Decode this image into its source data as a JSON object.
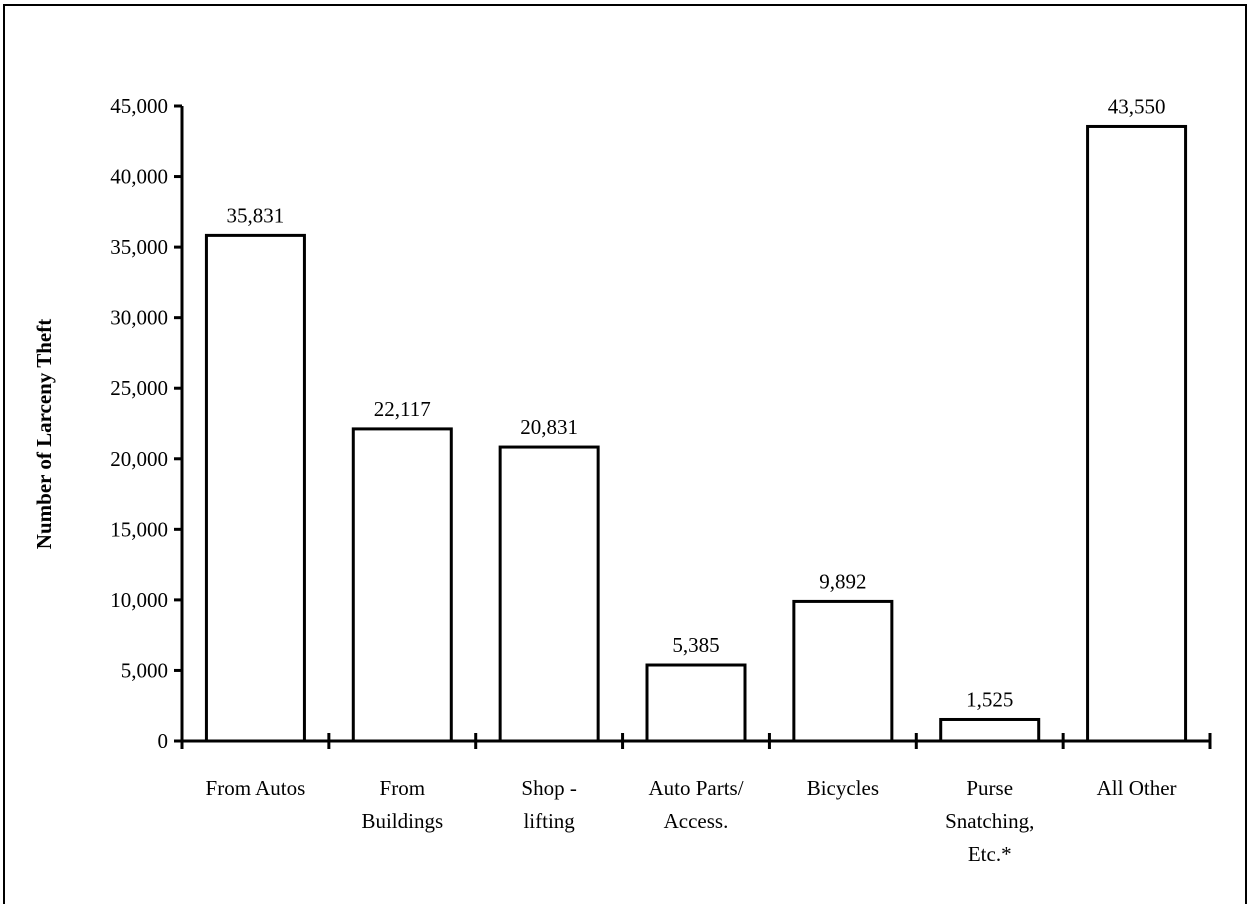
{
  "chart_data": {
    "type": "bar",
    "title": "",
    "xlabel": "",
    "ylabel": "Number of Larceny Theft",
    "ylim": [
      0,
      45000
    ],
    "yticks": [
      "0",
      "5,000",
      "10,000",
      "15,000",
      "20,000",
      "25,000",
      "30,000",
      "35,000",
      "40,000",
      "45,000"
    ],
    "categories": [
      [
        "From Autos"
      ],
      [
        "From",
        "Buildings"
      ],
      [
        "Shop -",
        "lifting"
      ],
      [
        "Auto Parts/",
        "Access."
      ],
      [
        "Bicycles"
      ],
      [
        "Purse",
        "Snatching,",
        "Etc.*"
      ],
      [
        "All Other"
      ]
    ],
    "values": [
      35831,
      22117,
      20831,
      5385,
      9892,
      1525,
      43550
    ],
    "data_labels": [
      "35,831",
      "22,117",
      "20,831",
      "5,385",
      "9,892",
      "1,525",
      "43,550"
    ],
    "bar_fill": "#ffffff",
    "bar_stroke": "#000000",
    "grid": false,
    "legend": "none"
  }
}
